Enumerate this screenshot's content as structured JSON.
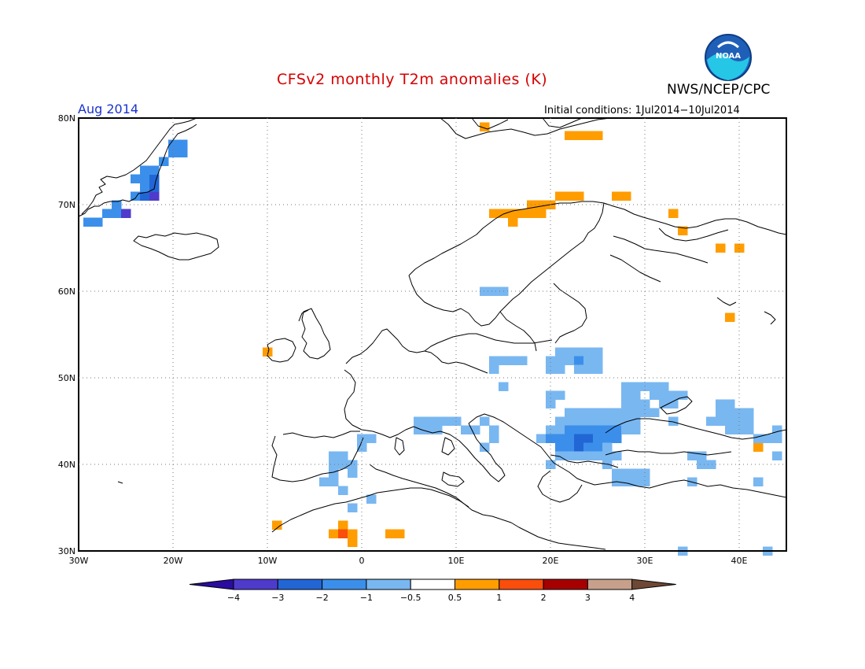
{
  "title": "CFSv2 monthly T2m anomalies (K)",
  "organization": "NWS/NCEP/CPC",
  "valid_period": "Aug 2014",
  "initial_conditions": "Initial conditions: 1Jul2014−10Jul2014",
  "logo_text": "NOAA",
  "logo_icon": "noaa-logo-icon",
  "map": {
    "lon_range": [
      -30,
      45
    ],
    "lat_range": [
      30,
      80
    ],
    "lon_ticks": [
      "30W",
      "20W",
      "10W",
      "0",
      "10E",
      "20E",
      "30E",
      "40E"
    ],
    "lat_ticks": [
      "30N",
      "40N",
      "50N",
      "60N",
      "70N",
      "80N"
    ],
    "grid": true,
    "cell_size_deg": 1,
    "anomaly_cells": [
      {
        "lon": -29,
        "lat": 68,
        "v": -1.5
      },
      {
        "lon": -28,
        "lat": 68,
        "v": -1.5
      },
      {
        "lon": -27,
        "lat": 69,
        "v": -1.5
      },
      {
        "lon": -26,
        "lat": 69,
        "v": -1.5
      },
      {
        "lon": -25,
        "lat": 69,
        "v": -3.5
      },
      {
        "lon": -26,
        "lat": 70,
        "v": -1.5
      },
      {
        "lon": -24,
        "lat": 71,
        "v": -1.5
      },
      {
        "lon": -23,
        "lat": 71,
        "v": -2.5
      },
      {
        "lon": -22,
        "lat": 71,
        "v": -3.5
      },
      {
        "lon": -23,
        "lat": 72,
        "v": -1.5
      },
      {
        "lon": -22,
        "lat": 72,
        "v": -2.5
      },
      {
        "lon": -24,
        "lat": 73,
        "v": -1.5
      },
      {
        "lon": -23,
        "lat": 73,
        "v": -1.5
      },
      {
        "lon": -22,
        "lat": 73,
        "v": -2.5
      },
      {
        "lon": -23,
        "lat": 74,
        "v": -1.5
      },
      {
        "lon": -22,
        "lat": 74,
        "v": -1.5
      },
      {
        "lon": -21,
        "lat": 75,
        "v": -1.5
      },
      {
        "lon": -20,
        "lat": 76,
        "v": -1.5
      },
      {
        "lon": -19,
        "lat": 76,
        "v": -1.5
      },
      {
        "lon": -20,
        "lat": 77,
        "v": -1.5
      },
      {
        "lon": -19,
        "lat": 77,
        "v": -1.5
      },
      {
        "lon": 14,
        "lat": 69,
        "v": 0.7
      },
      {
        "lon": 15,
        "lat": 69,
        "v": 0.7
      },
      {
        "lon": 16,
        "lat": 69,
        "v": 0.7
      },
      {
        "lon": 17,
        "lat": 69,
        "v": 0.7
      },
      {
        "lon": 18,
        "lat": 69,
        "v": 0.7
      },
      {
        "lon": 19,
        "lat": 69,
        "v": 0.7
      },
      {
        "lon": 18,
        "lat": 70,
        "v": 0.7
      },
      {
        "lon": 19,
        "lat": 70,
        "v": 0.7
      },
      {
        "lon": 20,
        "lat": 70,
        "v": 0.7
      },
      {
        "lon": 16,
        "lat": 68,
        "v": 0.7
      },
      {
        "lon": 21,
        "lat": 71,
        "v": 0.7
      },
      {
        "lon": 22,
        "lat": 71,
        "v": 0.7
      },
      {
        "lon": 23,
        "lat": 71,
        "v": 0.7
      },
      {
        "lon": 27,
        "lat": 71,
        "v": 0.7
      },
      {
        "lon": 28,
        "lat": 71,
        "v": 0.7
      },
      {
        "lon": 13,
        "lat": 79,
        "v": 0.7
      },
      {
        "lon": 22,
        "lat": 78,
        "v": 0.7
      },
      {
        "lon": 23,
        "lat": 78,
        "v": 0.7
      },
      {
        "lon": 24,
        "lat": 78,
        "v": 0.7
      },
      {
        "lon": 25,
        "lat": 78,
        "v": 0.7
      },
      {
        "lon": 33,
        "lat": 69,
        "v": 0.7
      },
      {
        "lon": 34,
        "lat": 67,
        "v": 0.7
      },
      {
        "lon": 38,
        "lat": 65,
        "v": 0.7
      },
      {
        "lon": 40,
        "lat": 65,
        "v": 0.7
      },
      {
        "lon": 39,
        "lat": 57,
        "v": 0.7
      },
      {
        "lon": -10,
        "lat": 53,
        "v": 0.7
      },
      {
        "lon": 42,
        "lat": 42,
        "v": 0.7
      },
      {
        "lon": -9,
        "lat": 33,
        "v": 0.7
      },
      {
        "lon": -2,
        "lat": 33,
        "v": 0.7
      },
      {
        "lon": -3,
        "lat": 32,
        "v": 0.7
      },
      {
        "lon": -2,
        "lat": 32,
        "v": 1.5
      },
      {
        "lon": -1,
        "lat": 32,
        "v": 0.7
      },
      {
        "lon": -1,
        "lat": 31,
        "v": 0.7
      },
      {
        "lon": 3,
        "lat": 32,
        "v": 0.7
      },
      {
        "lon": 4,
        "lat": 32,
        "v": 0.7
      },
      {
        "lon": 13,
        "lat": 60,
        "v": -0.7
      },
      {
        "lon": 14,
        "lat": 60,
        "v": -0.7
      },
      {
        "lon": 15,
        "lat": 60,
        "v": -0.7
      },
      {
        "lon": 14,
        "lat": 52,
        "v": -0.7
      },
      {
        "lon": 15,
        "lat": 52,
        "v": -0.7
      },
      {
        "lon": 16,
        "lat": 52,
        "v": -0.7
      },
      {
        "lon": 17,
        "lat": 52,
        "v": -0.7
      },
      {
        "lon": 14,
        "lat": 51,
        "v": -0.7
      },
      {
        "lon": 21,
        "lat": 53,
        "v": -0.7
      },
      {
        "lon": 22,
        "lat": 53,
        "v": -0.7
      },
      {
        "lon": 23,
        "lat": 53,
        "v": -0.7
      },
      {
        "lon": 24,
        "lat": 53,
        "v": -0.7
      },
      {
        "lon": 25,
        "lat": 53,
        "v": -0.7
      },
      {
        "lon": 20,
        "lat": 52,
        "v": -0.7
      },
      {
        "lon": 21,
        "lat": 52,
        "v": -0.7
      },
      {
        "lon": 22,
        "lat": 52,
        "v": -0.7
      },
      {
        "lon": 23,
        "lat": 52,
        "v": -1.2
      },
      {
        "lon": 24,
        "lat": 52,
        "v": -0.7
      },
      {
        "lon": 25,
        "lat": 52,
        "v": -0.7
      },
      {
        "lon": 20,
        "lat": 51,
        "v": -0.7
      },
      {
        "lon": 21,
        "lat": 51,
        "v": -0.7
      },
      {
        "lon": 23,
        "lat": 51,
        "v": -0.7
      },
      {
        "lon": 24,
        "lat": 51,
        "v": -0.7
      },
      {
        "lon": 25,
        "lat": 51,
        "v": -0.7
      },
      {
        "lon": 15,
        "lat": 49,
        "v": -0.7
      },
      {
        "lon": 20,
        "lat": 48,
        "v": -0.7
      },
      {
        "lon": 21,
        "lat": 48,
        "v": -0.7
      },
      {
        "lon": 20,
        "lat": 47,
        "v": -0.7
      },
      {
        "lon": 28,
        "lat": 49,
        "v": -0.7
      },
      {
        "lon": 29,
        "lat": 49,
        "v": -0.7
      },
      {
        "lon": 30,
        "lat": 49,
        "v": -0.7
      },
      {
        "lon": 31,
        "lat": 49,
        "v": -0.7
      },
      {
        "lon": 32,
        "lat": 49,
        "v": -0.7
      },
      {
        "lon": 28,
        "lat": 48,
        "v": -0.7
      },
      {
        "lon": 29,
        "lat": 48,
        "v": -0.7
      },
      {
        "lon": 31,
        "lat": 48,
        "v": -0.7
      },
      {
        "lon": 32,
        "lat": 48,
        "v": -0.7
      },
      {
        "lon": 33,
        "lat": 48,
        "v": -0.7
      },
      {
        "lon": 34,
        "lat": 48,
        "v": -0.7
      },
      {
        "lon": 28,
        "lat": 47,
        "v": -0.7
      },
      {
        "lon": 29,
        "lat": 47,
        "v": -0.7
      },
      {
        "lon": 30,
        "lat": 47,
        "v": -0.7
      },
      {
        "lon": 32,
        "lat": 47,
        "v": -0.7
      },
      {
        "lon": 33,
        "lat": 47,
        "v": -0.7
      },
      {
        "lon": 22,
        "lat": 46,
        "v": -0.7
      },
      {
        "lon": 23,
        "lat": 46,
        "v": -0.7
      },
      {
        "lon": 24,
        "lat": 46,
        "v": -0.7
      },
      {
        "lon": 25,
        "lat": 46,
        "v": -0.7
      },
      {
        "lon": 26,
        "lat": 46,
        "v": -0.7
      },
      {
        "lon": 27,
        "lat": 46,
        "v": -0.7
      },
      {
        "lon": 28,
        "lat": 46,
        "v": -0.7
      },
      {
        "lon": 29,
        "lat": 46,
        "v": -0.7
      },
      {
        "lon": 30,
        "lat": 46,
        "v": -0.7
      },
      {
        "lon": 31,
        "lat": 46,
        "v": -0.7
      },
      {
        "lon": 21,
        "lat": 45,
        "v": -0.7
      },
      {
        "lon": 22,
        "lat": 45,
        "v": -0.7
      },
      {
        "lon": 23,
        "lat": 45,
        "v": -0.7
      },
      {
        "lon": 24,
        "lat": 45,
        "v": -0.7
      },
      {
        "lon": 25,
        "lat": 45,
        "v": -0.7
      },
      {
        "lon": 26,
        "lat": 45,
        "v": -0.7
      },
      {
        "lon": 27,
        "lat": 45,
        "v": -0.7
      },
      {
        "lon": 28,
        "lat": 45,
        "v": -0.7
      },
      {
        "lon": 29,
        "lat": 45,
        "v": -0.7
      },
      {
        "lon": 33,
        "lat": 45,
        "v": -0.7
      },
      {
        "lon": 20,
        "lat": 44,
        "v": -0.7
      },
      {
        "lon": 21,
        "lat": 44,
        "v": -0.7
      },
      {
        "lon": 22,
        "lat": 44,
        "v": -1.2
      },
      {
        "lon": 23,
        "lat": 44,
        "v": -1.2
      },
      {
        "lon": 24,
        "lat": 44,
        "v": -1.2
      },
      {
        "lon": 25,
        "lat": 44,
        "v": -1.2
      },
      {
        "lon": 26,
        "lat": 44,
        "v": -1.2
      },
      {
        "lon": 27,
        "lat": 44,
        "v": -1.2
      },
      {
        "lon": 28,
        "lat": 44,
        "v": -0.7
      },
      {
        "lon": 29,
        "lat": 44,
        "v": -0.7
      },
      {
        "lon": 19,
        "lat": 43,
        "v": -0.7
      },
      {
        "lon": 20,
        "lat": 43,
        "v": -1.2
      },
      {
        "lon": 21,
        "lat": 43,
        "v": -1.2
      },
      {
        "lon": 22,
        "lat": 43,
        "v": -1.2
      },
      {
        "lon": 23,
        "lat": 43,
        "v": -2.2
      },
      {
        "lon": 24,
        "lat": 43,
        "v": -2.2
      },
      {
        "lon": 25,
        "lat": 43,
        "v": -1.2
      },
      {
        "lon": 26,
        "lat": 43,
        "v": -1.2
      },
      {
        "lon": 27,
        "lat": 43,
        "v": -1.2
      },
      {
        "lon": 21,
        "lat": 42,
        "v": -1.2
      },
      {
        "lon": 22,
        "lat": 42,
        "v": -1.2
      },
      {
        "lon": 23,
        "lat": 42,
        "v": -2.2
      },
      {
        "lon": 24,
        "lat": 42,
        "v": -1.2
      },
      {
        "lon": 25,
        "lat": 42,
        "v": -1.2
      },
      {
        "lon": 26,
        "lat": 42,
        "v": -0.7
      },
      {
        "lon": 21,
        "lat": 41,
        "v": -0.7
      },
      {
        "lon": 22,
        "lat": 41,
        "v": -0.7
      },
      {
        "lon": 23,
        "lat": 41,
        "v": -0.7
      },
      {
        "lon": 24,
        "lat": 41,
        "v": -0.7
      },
      {
        "lon": 25,
        "lat": 41,
        "v": -0.7
      },
      {
        "lon": 26,
        "lat": 41,
        "v": -0.7
      },
      {
        "lon": 27,
        "lat": 41,
        "v": -0.7
      },
      {
        "lon": 20,
        "lat": 40,
        "v": -0.7
      },
      {
        "lon": 26,
        "lat": 40,
        "v": -0.7
      },
      {
        "lon": 27,
        "lat": 39,
        "v": -0.7
      },
      {
        "lon": 28,
        "lat": 39,
        "v": -0.7
      },
      {
        "lon": 29,
        "lat": 39,
        "v": -0.7
      },
      {
        "lon": 30,
        "lat": 39,
        "v": -0.7
      },
      {
        "lon": 27,
        "lat": 38,
        "v": -0.7
      },
      {
        "lon": 28,
        "lat": 38,
        "v": -0.7
      },
      {
        "lon": 29,
        "lat": 38,
        "v": -0.7
      },
      {
        "lon": 30,
        "lat": 38,
        "v": -0.7
      },
      {
        "lon": 35,
        "lat": 41,
        "v": -0.7
      },
      {
        "lon": 36,
        "lat": 41,
        "v": -0.7
      },
      {
        "lon": 36,
        "lat": 40,
        "v": -0.7
      },
      {
        "lon": 37,
        "lat": 40,
        "v": -0.7
      },
      {
        "lon": 38,
        "lat": 47,
        "v": -0.7
      },
      {
        "lon": 39,
        "lat": 47,
        "v": -0.7
      },
      {
        "lon": 38,
        "lat": 46,
        "v": -0.7
      },
      {
        "lon": 39,
        "lat": 46,
        "v": -0.7
      },
      {
        "lon": 40,
        "lat": 46,
        "v": -0.7
      },
      {
        "lon": 41,
        "lat": 46,
        "v": -0.7
      },
      {
        "lon": 37,
        "lat": 45,
        "v": -0.7
      },
      {
        "lon": 38,
        "lat": 45,
        "v": -0.7
      },
      {
        "lon": 39,
        "lat": 45,
        "v": -0.7
      },
      {
        "lon": 40,
        "lat": 45,
        "v": -0.7
      },
      {
        "lon": 41,
        "lat": 45,
        "v": -0.7
      },
      {
        "lon": 39,
        "lat": 44,
        "v": -0.7
      },
      {
        "lon": 40,
        "lat": 44,
        "v": -0.7
      },
      {
        "lon": 41,
        "lat": 44,
        "v": -0.7
      },
      {
        "lon": 42,
        "lat": 43,
        "v": -0.7
      },
      {
        "lon": 43,
        "lat": 43,
        "v": -0.7
      },
      {
        "lon": 44,
        "lat": 43,
        "v": -0.7
      },
      {
        "lon": 44,
        "lat": 44,
        "v": -0.7
      },
      {
        "lon": 44,
        "lat": 41,
        "v": -0.7
      },
      {
        "lon": 42,
        "lat": 38,
        "v": -0.7
      },
      {
        "lon": 35,
        "lat": 38,
        "v": -0.7
      },
      {
        "lon": 6,
        "lat": 45,
        "v": -0.7
      },
      {
        "lon": 7,
        "lat": 45,
        "v": -0.7
      },
      {
        "lon": 8,
        "lat": 45,
        "v": -0.7
      },
      {
        "lon": 9,
        "lat": 45,
        "v": -0.7
      },
      {
        "lon": 10,
        "lat": 45,
        "v": -0.7
      },
      {
        "lon": 6,
        "lat": 44,
        "v": -0.7
      },
      {
        "lon": 7,
        "lat": 44,
        "v": -0.7
      },
      {
        "lon": 8,
        "lat": 44,
        "v": -0.7
      },
      {
        "lon": 11,
        "lat": 44,
        "v": -0.7
      },
      {
        "lon": 12,
        "lat": 44,
        "v": -0.7
      },
      {
        "lon": 14,
        "lat": 44,
        "v": -0.7
      },
      {
        "lon": 13,
        "lat": 45,
        "v": -0.7
      },
      {
        "lon": 14,
        "lat": 43,
        "v": -0.7
      },
      {
        "lon": 13,
        "lat": 42,
        "v": -0.7
      },
      {
        "lon": -3,
        "lat": 41,
        "v": -0.7
      },
      {
        "lon": -2,
        "lat": 41,
        "v": -0.7
      },
      {
        "lon": -3,
        "lat": 40,
        "v": -0.7
      },
      {
        "lon": -2,
        "lat": 40,
        "v": -0.7
      },
      {
        "lon": -1,
        "lat": 40,
        "v": -0.7
      },
      {
        "lon": -3,
        "lat": 39,
        "v": -0.7
      },
      {
        "lon": -1,
        "lat": 39,
        "v": -0.7
      },
      {
        "lon": -4,
        "lat": 38,
        "v": -0.7
      },
      {
        "lon": -3,
        "lat": 38,
        "v": -0.7
      },
      {
        "lon": -2,
        "lat": 37,
        "v": -0.7
      },
      {
        "lon": 0,
        "lat": 43,
        "v": -0.7
      },
      {
        "lon": 1,
        "lat": 43,
        "v": -0.7
      },
      {
        "lon": 0,
        "lat": 42,
        "v": -0.7
      },
      {
        "lon": 1,
        "lat": 36,
        "v": -0.7
      },
      {
        "lon": -1,
        "lat": 35,
        "v": -0.7
      },
      {
        "lon": 34,
        "lat": 30,
        "v": -0.7
      },
      {
        "lon": 43,
        "lat": 30,
        "v": -0.7
      }
    ]
  },
  "colorbar": {
    "levels": [
      "−4",
      "−3",
      "−2",
      "−1",
      "−0.5",
      "0.5",
      "1",
      "2",
      "3",
      "4"
    ],
    "colors": [
      "#2a0c9e",
      "#4e3bcc",
      "#2266d6",
      "#3b8fea",
      "#79b7f1",
      "#ffffff",
      "#ff9d00",
      "#fa4e0d",
      "#a60000",
      "#c7a08c",
      "#6e4834"
    ]
  }
}
